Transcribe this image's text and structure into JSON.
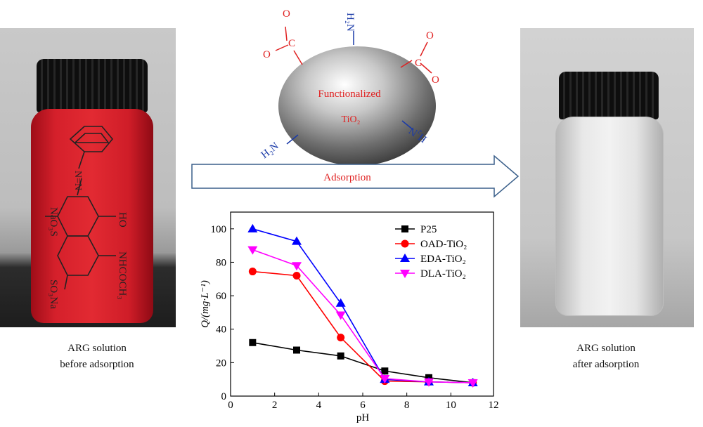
{
  "left_caption": {
    "line1": "ARG solution",
    "line2": "before adsorption"
  },
  "right_caption": {
    "line1": "ARG solution",
    "line2": "after adsorption"
  },
  "molecule": {
    "na_o3s": "NaO₃S",
    "ho": "HO",
    "nhcoch3": "NHCOCH₃",
    "so3na": "SO₃Na",
    "azo": "N=N"
  },
  "sphere": {
    "line1": "Functionalized",
    "line2": "TiO₂",
    "groups": [
      "H₂N",
      "H₂N",
      "H₂N",
      "O",
      "O",
      "C",
      "O",
      "O",
      "C"
    ],
    "label_color": "#e02020",
    "amine_color": "#1a3aa8"
  },
  "arrow": {
    "label": "Adsorption",
    "stroke_color": "#3a5f8a"
  },
  "chart_data": {
    "type": "line",
    "xlabel": "pH",
    "ylabel": "Q/(mg·L⁻¹)",
    "xlim": [
      0,
      12
    ],
    "ylim": [
      0,
      110
    ],
    "xticks": [
      0,
      2,
      4,
      6,
      8,
      10,
      12
    ],
    "yticks": [
      0,
      20,
      40,
      60,
      80,
      100
    ],
    "grid": false,
    "legend_position": "top-right",
    "series": [
      {
        "name": "P25",
        "color": "#000000",
        "marker": "square",
        "x": [
          1,
          3,
          5,
          7,
          9,
          11
        ],
        "y": [
          32,
          27.5,
          24,
          15,
          11,
          8
        ]
      },
      {
        "name": "OAD-TiO₂",
        "color": "#ff0000",
        "marker": "circle",
        "x": [
          1,
          3,
          5,
          7,
          9,
          11
        ],
        "y": [
          74.5,
          72,
          35,
          9,
          8.5,
          8
        ]
      },
      {
        "name": "EDA-TiO₂",
        "color": "#0000ff",
        "marker": "triangle-up",
        "x": [
          1,
          3,
          5,
          7,
          9,
          11
        ],
        "y": [
          100,
          92.5,
          55.5,
          10,
          8.5,
          8
        ]
      },
      {
        "name": "DLA-TiO₂",
        "color": "#ff00ff",
        "marker": "triangle-down",
        "x": [
          1,
          3,
          5,
          7,
          9,
          11
        ],
        "y": [
          87.5,
          78,
          48.5,
          10.5,
          8.5,
          8
        ]
      }
    ]
  }
}
